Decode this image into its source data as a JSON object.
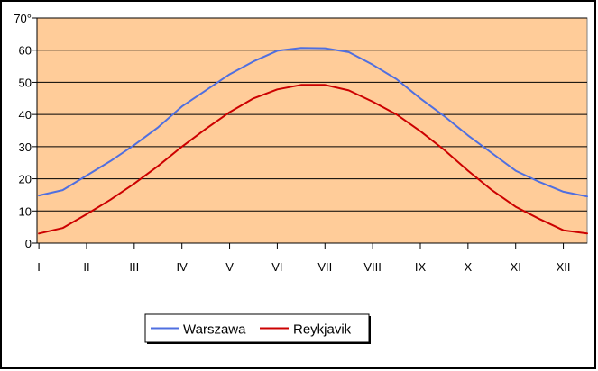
{
  "chart_data": {
    "type": "line",
    "categories": [
      "I",
      "II",
      "III",
      "IV",
      "V",
      "VI",
      "VII",
      "VIII",
      "IX",
      "X",
      "XI",
      "XII"
    ],
    "y_tick_labels": [
      "0",
      "10",
      "20",
      "30",
      "40",
      "50",
      "60",
      "70°"
    ],
    "ylim": [
      0,
      70
    ],
    "x_range": [
      0.96,
      12.5
    ],
    "grid": true,
    "legend_position": "bottom-center",
    "colors": {
      "plot_background": "#FFCC99",
      "gridline": "#000000",
      "warszawa": "#4F6FE0",
      "reykjavik": "#CC0000"
    },
    "series": [
      {
        "name": "Warszawa",
        "x": [
          1,
          1.5,
          2,
          2.5,
          3,
          3.5,
          4,
          4.5,
          5,
          5.5,
          6,
          6.5,
          7,
          7.5,
          8,
          8.5,
          9,
          9.5,
          10,
          10.5,
          11,
          11.5,
          12,
          12.5
        ],
        "values": [
          14.8,
          16.5,
          21,
          25.5,
          30.5,
          36,
          42.5,
          47.5,
          52.5,
          56.5,
          59.8,
          60.7,
          60.6,
          59.4,
          55.5,
          51,
          45,
          39.5,
          33.5,
          28,
          22.5,
          19,
          16,
          14.5
        ]
      },
      {
        "name": "Reykjavik",
        "x": [
          1,
          1.5,
          2,
          2.5,
          3,
          3.5,
          4,
          4.5,
          5,
          5.5,
          6,
          6.5,
          7,
          7.5,
          8,
          8.5,
          9,
          9.5,
          10,
          10.5,
          11,
          11.5,
          12,
          12.5
        ],
        "values": [
          3,
          4.7,
          9,
          13.5,
          18.5,
          24,
          30,
          35.5,
          40.7,
          45,
          47.8,
          49.2,
          49.2,
          47.5,
          44,
          40,
          34.8,
          29,
          22.5,
          16.5,
          11.3,
          7.5,
          4,
          3
        ]
      }
    ]
  }
}
